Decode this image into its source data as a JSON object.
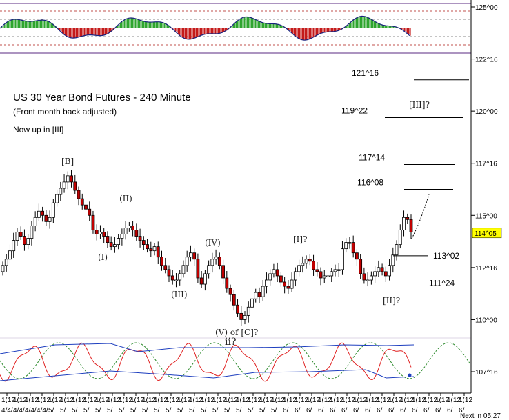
{
  "chart_data": {
    "type": "candlestick",
    "title": "US 30 Year Bond Futures - 240 Minute",
    "subtitle": "(Front month back adjusted)",
    "note": "Now up in [III]",
    "price_axis": {
      "ticks": [
        "125^00",
        "122^16",
        "120^00",
        "117^16",
        "115^00",
        "112^16",
        "110^00",
        "107^16"
      ],
      "current_price": "114^05",
      "current_price_color": "#ffff00"
    },
    "time_axis": {
      "labels": [
        "1(12",
        "1(12",
        "1(12",
        "1(12",
        "1(12",
        "1(12",
        "1(12",
        "1(12",
        "1(12",
        "1(12",
        "1(12",
        "1(12",
        "1(12",
        "1(12",
        "1(12",
        "1(12",
        "1(12",
        "1(12",
        "1(12",
        "1(12",
        "1(12",
        "1(12",
        "1(12",
        "1(12",
        "1(12",
        "1(12",
        "1(12",
        "1(12",
        "1(12",
        "1(12",
        "1(12",
        "1(12",
        "1(12",
        "1(12",
        "1(12",
        "1(12",
        "1(12",
        "1(12",
        "1(12",
        "1(12",
        "1(12",
        "1(12",
        "1(12",
        "1(12",
        "1(12",
        "1(12",
        "1(12",
        "1(12",
        "1(12",
        "1(12",
        "1(12",
        "1(12",
        "1(12",
        "1(12",
        "1(12",
        "1(12",
        "1(12",
        "1(12",
        "1(12",
        "1(12",
        "1(12",
        "1(12",
        "1(12",
        "1(12",
        "1(12",
        "1(12",
        "1(12",
        "1(12",
        "1(12",
        "1(12",
        "1(12",
        "1(12",
        "1(12",
        "1(12",
        "1(12",
        "1(12",
        "1(12",
        "1(12",
        "1(12",
        "1(12",
        "1(12",
        "1(12",
        "1(12",
        "1(12",
        "1(12",
        "1(12",
        "1(12",
        "1(12",
        "1(12",
        "1(12",
        "1(12",
        "1(12",
        "1(12",
        "1(12",
        "1(12",
        "1(12",
        "1(12",
        "1(12",
        "1(12",
        "1(12",
        "1(12",
        "1(12",
        "1(12",
        "1(12",
        "1(12",
        "1(12",
        "1(12",
        "1(12",
        "1(12",
        "1(12",
        "1(12",
        "1(12",
        "1(12",
        "1(12",
        "1(12",
        "1(12",
        "1(12",
        "1(12",
        "1(12",
        "1(12",
        "1(12",
        "1(12",
        "1(12",
        "1(12",
        "1(12",
        "1(12",
        "1(12",
        "1(12",
        "1(12",
        "1(12",
        "1(12",
        "1(12",
        "1(12",
        "1(12",
        "1(12",
        "1(12",
        "1(12",
        "1(12",
        "1(12",
        "1(12",
        "1(12",
        "1(12",
        "1(12",
        "1(12",
        "1(12",
        "1(12",
        "1(12",
        "1(12",
        "1(12",
        "1(12",
        "1(12",
        "1(12",
        "1(12",
        "1(12",
        "1(12",
        "1(12",
        "1(12",
        "1(12",
        "1(12",
        "1(12",
        "1(12",
        "1(12",
        "1(12",
        "1(12",
        "1(12",
        "1(12",
        "1(12",
        "1(12",
        "1(12",
        "1(12",
        "1(12",
        "1(12",
        "1(12",
        "1(12",
        "1(12",
        "1(12",
        "1(12",
        "1(12",
        "1(12",
        "1(12",
        "1(12",
        "1(12",
        "1(12",
        "1(12",
        "1(12",
        "1(12",
        "1(12",
        "1(12",
        "1(12",
        "1(12",
        "1(12"
      ],
      "dates": [
        "4/4/",
        "4/4/",
        "4/4/",
        "4/4/",
        "5/",
        "5/",
        "5/",
        "5/",
        "5/",
        "5/",
        "5/",
        "5/",
        "5/",
        "5/",
        "5/",
        "5/",
        "5/",
        "5/",
        "5/",
        "5/",
        "5/",
        "5/",
        "5/",
        "5/",
        "6/",
        "6/",
        "6/",
        "6/",
        "6/",
        "6/",
        "6/",
        "6/",
        "6/",
        "6/",
        "6/",
        "6/",
        "6/",
        "6/",
        "6/",
        "6/"
      ]
    },
    "footer": "Next in 05:27",
    "levels": [
      {
        "label": "121^16",
        "price": 121.5
      },
      {
        "label": "119^22",
        "price": 119.69
      },
      {
        "label": "117^14",
        "price": 117.44
      },
      {
        "label": "116^08",
        "price": 116.25
      },
      {
        "label": "113^02",
        "price": 113.06
      },
      {
        "label": "111^24",
        "price": 111.75
      }
    ],
    "wave_labels": [
      "[B]",
      "(II)",
      "(I)",
      "(IV)",
      "(III)",
      "(V) of [C]?",
      "ii?",
      "[I]?",
      "[II]?",
      "[III]?"
    ],
    "closes": [
      112.6,
      112.9,
      113.3,
      113.8,
      114.2,
      114.0,
      113.6,
      113.9,
      114.5,
      114.9,
      115.2,
      115.0,
      114.7,
      114.9,
      115.6,
      116.0,
      116.3,
      116.6,
      116.9,
      116.6,
      116.2,
      115.8,
      115.5,
      115.3,
      115.0,
      114.3,
      114.1,
      114.2,
      114.0,
      113.7,
      113.5,
      113.6,
      113.9,
      114.1,
      114.4,
      114.5,
      114.3,
      114.0,
      113.8,
      113.6,
      113.4,
      113.3,
      113.5,
      113.0,
      112.6,
      112.4,
      112.1,
      111.9,
      111.9,
      112.2,
      112.6,
      113.0,
      113.2,
      112.9,
      112.0,
      111.7,
      112.2,
      112.6,
      112.9,
      113.0,
      112.6,
      112.0,
      111.5,
      111.2,
      110.7,
      110.3,
      110.0,
      110.2,
      110.6,
      111.0,
      111.3,
      111.1,
      111.6,
      111.9,
      112.2,
      112.4,
      112.1,
      111.8,
      111.6,
      111.5,
      111.9,
      112.3,
      112.6,
      112.7,
      112.9,
      112.8,
      112.4,
      112.3,
      112.0,
      112.1,
      112.1,
      112.3,
      112.4,
      112.4,
      113.4,
      113.7,
      113.7,
      113.2,
      112.9,
      112.2,
      111.9,
      111.9,
      112.1,
      112.3,
      112.5,
      112.3,
      112.1,
      112.6,
      113.1,
      113.6,
      114.3,
      114.9,
      114.8,
      114.2
    ]
  }
}
